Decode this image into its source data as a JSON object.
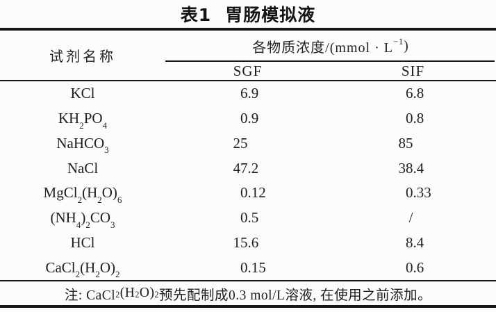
{
  "title": {
    "label": "表1",
    "text": "胃肠模拟液"
  },
  "table": {
    "col1_header": "试剂名称",
    "group_header": "各物质浓度/(mmol · L^−1^)",
    "sub_headers": {
      "sgf": "SGF",
      "sif": "SIF"
    },
    "rows": [
      {
        "name": "KCl",
        "sgf": "6.9",
        "sif": "6.8"
      },
      {
        "name": "KH~2~PO~4~",
        "sgf": "0.9",
        "sif": "0.8"
      },
      {
        "name": "NaHCO~3~",
        "sgf": "25",
        "sif": "85"
      },
      {
        "name": "NaCl",
        "sgf": "47.2",
        "sif": "38.4"
      },
      {
        "name": "MgCl~2~(H~2~O)~6~",
        "sgf": "0.12",
        "sif": "0.33"
      },
      {
        "name": "(NH~4~)~2~CO~3~",
        "sgf": "0.5",
        "sif": "/"
      },
      {
        "name": "HCl",
        "sgf": "15.6",
        "sif": "8.4"
      },
      {
        "name": "CaCl~2~(H~2~O)~2~",
        "sgf": "0.15",
        "sif": "0.6"
      }
    ],
    "note": "注: CaCl~2~(H~2~O)~2~预先配制成0.3 mol/L溶液, 在使用之前添加。"
  },
  "colors": {
    "background": "#fcfcfb",
    "text": "#1e1e1e",
    "rule": "#171717"
  }
}
